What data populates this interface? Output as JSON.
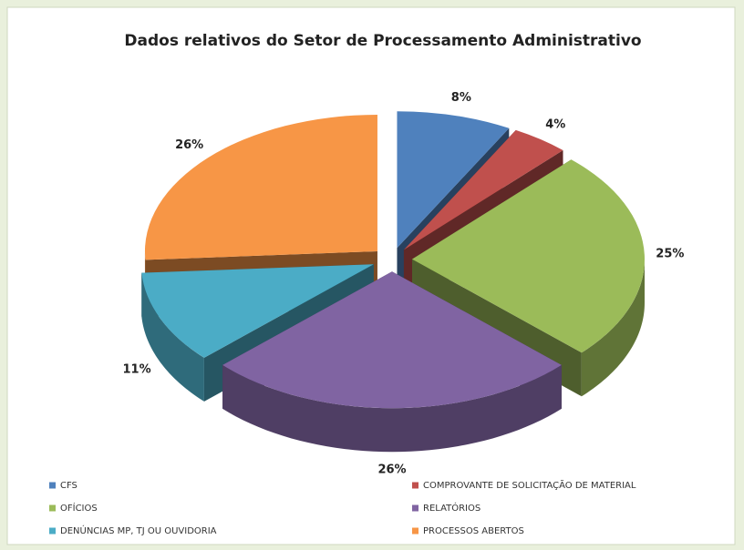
{
  "chart_data": {
    "type": "pie",
    "title": "Dados relativos do Setor de Processamento Administrativo",
    "categories": [
      "CFS",
      "COMPROVANTE DE SOLICITAÇÃO DE MATERIAL",
      "OFÍCIOS",
      "RELATÓRIOS",
      "DENÚNCIAS MP, TJ OU OUVIDORIA",
      "PROCESSOS ABERTOS"
    ],
    "values": [
      8,
      4,
      25,
      26,
      11,
      26
    ],
    "value_labels": [
      "8%",
      "4%",
      "25%",
      "26%",
      "11%",
      "26%"
    ],
    "colors": [
      "#4f81bd",
      "#c0504d",
      "#9bbb59",
      "#8064a2",
      "#4bacc6",
      "#f79646"
    ],
    "legend": "bottom"
  }
}
